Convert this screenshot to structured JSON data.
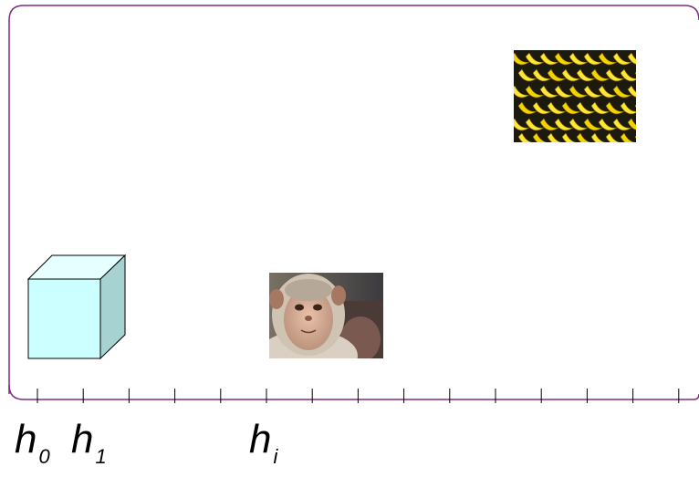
{
  "colors": {
    "frame": "#7b2d7e",
    "axis": "#000000",
    "cube_front": "#ccffff",
    "cube_top": "#e6ffff",
    "cube_side": "#a6d2d2",
    "cube_edge": "#000000"
  },
  "images": {
    "bananas": "bananas-photo",
    "monkey": "monkey-photo",
    "cube": "cube-shape"
  },
  "axis": {
    "tick_count": 15
  },
  "labels": [
    {
      "base": "h",
      "sub": "0"
    },
    {
      "base": "h",
      "sub": "1"
    },
    {
      "base": "h",
      "sub": "i"
    }
  ]
}
